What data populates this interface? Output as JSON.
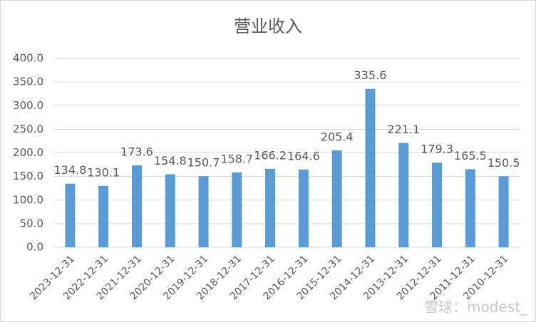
{
  "chart_data": {
    "type": "bar",
    "title": "营业收入",
    "categories": [
      "2023-12-31",
      "2022-12-31",
      "2021-12-31",
      "2020-12-31",
      "2019-12-31",
      "2018-12-31",
      "2017-12-31",
      "2016-12-31",
      "2015-12-31",
      "2014-12-31",
      "2013-12-31",
      "2012-12-31",
      "2011-12-31",
      "2010-12-31"
    ],
    "values": [
      134.8,
      130.1,
      173.6,
      154.8,
      150.7,
      158.7,
      166.2,
      164.6,
      205.4,
      335.6,
      221.1,
      179.3,
      165.5,
      150.5
    ],
    "color": "#5b9bd5",
    "ylim": [
      0,
      400
    ],
    "yticks": [
      {
        "value": 0,
        "label": "0.0"
      },
      {
        "value": 50,
        "label": "50.0"
      },
      {
        "value": 100,
        "label": "100.0"
      },
      {
        "value": 150,
        "label": "150.0"
      },
      {
        "value": 200,
        "label": "200.0"
      },
      {
        "value": 250,
        "label": "250.0"
      },
      {
        "value": 300,
        "label": "300.0"
      },
      {
        "value": 350,
        "label": "350.0"
      },
      {
        "value": 400,
        "label": "400.0"
      }
    ],
    "grid": true,
    "watermark": "雪球：modest_"
  }
}
